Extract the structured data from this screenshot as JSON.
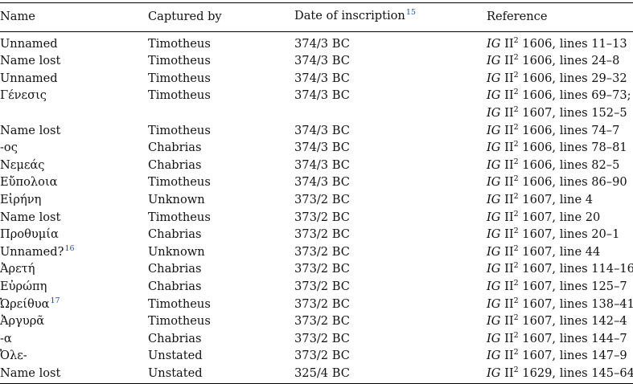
{
  "headers": {
    "name": "Name",
    "captured_by": "Captured by",
    "date": "Date of inscription",
    "date_note": "15",
    "reference": "Reference"
  },
  "rows": [
    {
      "name": "Unnamed",
      "note": "",
      "captured_by": "Timotheus",
      "date": "374/3 BC",
      "ref_prefix": "IG",
      "ref_series": "II",
      "ref_sup": "2",
      "ref_rest": "1606, lines 11–13"
    },
    {
      "name": "Name lost",
      "note": "",
      "captured_by": "Timotheus",
      "date": "374/3 BC",
      "ref_prefix": "IG",
      "ref_series": "II",
      "ref_sup": "2",
      "ref_rest": "1606, lines 24–8"
    },
    {
      "name": "Unnamed",
      "note": "",
      "captured_by": "Timotheus",
      "date": "374/3 BC",
      "ref_prefix": "IG",
      "ref_series": "II",
      "ref_sup": "2",
      "ref_rest": "1606, lines 29–32"
    },
    {
      "name": "Γένεσις",
      "note": "",
      "captured_by": "Timotheus",
      "date": "374/3 BC",
      "ref_prefix": "IG",
      "ref_series": "II",
      "ref_sup": "2",
      "ref_rest": "1606, lines 69–73;"
    },
    {
      "name": "",
      "note": "",
      "captured_by": "",
      "date": "",
      "ref_prefix": "IG",
      "ref_series": "II",
      "ref_sup": "2",
      "ref_rest": "1607, lines 152–5"
    },
    {
      "name": "Name lost",
      "note": "",
      "captured_by": "Timotheus",
      "date": "374/3 BC",
      "ref_prefix": "IG",
      "ref_series": "II",
      "ref_sup": "2",
      "ref_rest": "1606, lines 74–7"
    },
    {
      "name": "-ος",
      "note": "",
      "captured_by": "Chabrias",
      "date": "374/3 BC",
      "ref_prefix": "IG",
      "ref_series": "II",
      "ref_sup": "2",
      "ref_rest": "1606, lines 78–81"
    },
    {
      "name": "Νεμεάς",
      "note": "",
      "captured_by": "Chabrias",
      "date": "374/3 BC",
      "ref_prefix": "IG",
      "ref_series": "II",
      "ref_sup": "2",
      "ref_rest": "1606, lines 82–5"
    },
    {
      "name": "Εὔπολοια",
      "note": "",
      "captured_by": "Timotheus",
      "date": "374/3 BC",
      "ref_prefix": "IG",
      "ref_series": "II",
      "ref_sup": "2",
      "ref_rest": "1606, lines 86–90"
    },
    {
      "name": "Εἰρήνη",
      "note": "",
      "captured_by": "Unknown",
      "date": "373/2 BC",
      "ref_prefix": "IG",
      "ref_series": "II",
      "ref_sup": "2",
      "ref_rest": "1607, line 4"
    },
    {
      "name": "Name lost",
      "note": "",
      "captured_by": "Timotheus",
      "date": "373/2 BC",
      "ref_prefix": "IG",
      "ref_series": "II",
      "ref_sup": "2",
      "ref_rest": "1607, line 20"
    },
    {
      "name": "Προθυμία",
      "note": "",
      "captured_by": "Chabrias",
      "date": "373/2 BC",
      "ref_prefix": "IG",
      "ref_series": "II",
      "ref_sup": "2",
      "ref_rest": "1607, lines 20–1"
    },
    {
      "name": "Unnamed?",
      "note": "16",
      "captured_by": "Unknown",
      "date": "373/2 BC",
      "ref_prefix": "IG",
      "ref_series": "II",
      "ref_sup": "2",
      "ref_rest": "1607, line 44"
    },
    {
      "name": "Ἀρετή",
      "note": "",
      "captured_by": "Chabrias",
      "date": "373/2 BC",
      "ref_prefix": "IG",
      "ref_series": "II",
      "ref_sup": "2",
      "ref_rest": "1607, lines 114–16"
    },
    {
      "name": "Εὐρώπη",
      "note": "",
      "captured_by": "Chabrias",
      "date": "373/2 BC",
      "ref_prefix": "IG",
      "ref_series": "II",
      "ref_sup": "2",
      "ref_rest": "1607, lines 125–7"
    },
    {
      "name": "Ὠρείθυα",
      "note": "17",
      "captured_by": "Timotheus",
      "date": "373/2 BC",
      "ref_prefix": "IG",
      "ref_series": "II",
      "ref_sup": "2",
      "ref_rest": "1607, lines 138–41"
    },
    {
      "name": "Ἀργυρᾶ",
      "note": "",
      "captured_by": "Timotheus",
      "date": "373/2 BC",
      "ref_prefix": "IG",
      "ref_series": "II",
      "ref_sup": "2",
      "ref_rest": "1607, lines 142–4"
    },
    {
      "name": "-α",
      "note": "",
      "captured_by": "Chabrias",
      "date": "373/2 BC",
      "ref_prefix": "IG",
      "ref_series": "II",
      "ref_sup": "2",
      "ref_rest": "1607, lines 144–7"
    },
    {
      "name": "Ὀλε-",
      "note": "",
      "captured_by": "Unstated",
      "date": "373/2 BC",
      "ref_prefix": "IG",
      "ref_series": "II",
      "ref_sup": "2",
      "ref_rest": "1607, lines 147–9"
    },
    {
      "name": "Name lost",
      "note": "",
      "captured_by": "Unstated",
      "date": "325/4 BC",
      "ref_prefix": "IG",
      "ref_series": "II",
      "ref_sup": "2",
      "ref_rest": "1629, lines 145–64"
    }
  ],
  "colors": {
    "footnote": "#1f4fb0",
    "text": "#111111",
    "rule": "#000000"
  }
}
